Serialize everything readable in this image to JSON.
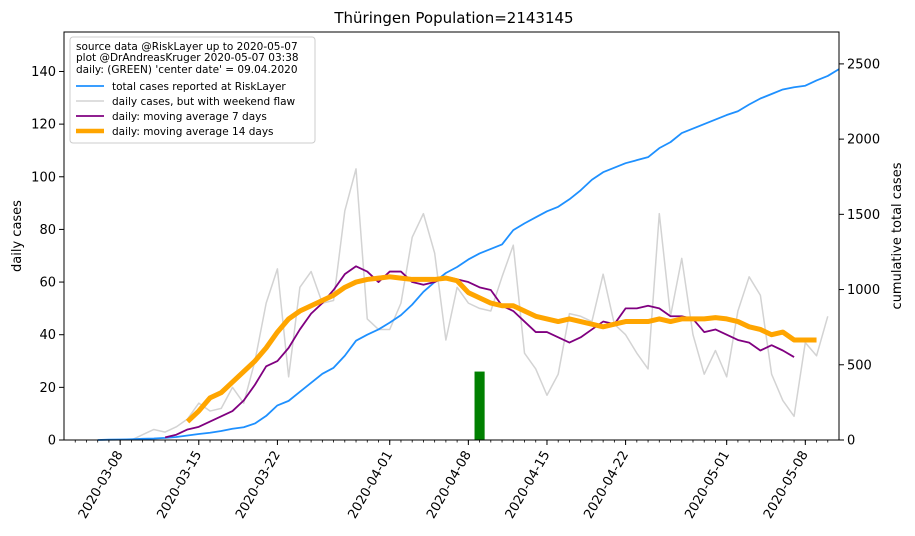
{
  "chart_data": {
    "type": "line",
    "title": "Thüringen Population=2143145",
    "ylabel_left": "daily cases",
    "ylabel_right": "cumulative total cases",
    "ylabel_left_color": "#800080",
    "ylabel_right_color": "#1e90ff",
    "ylim_left": [
      0,
      155
    ],
    "ylim_right": [
      0,
      2712
    ],
    "yticks_left": [
      0,
      20,
      40,
      60,
      80,
      100,
      120,
      140
    ],
    "yticks_right": [
      0,
      500,
      1000,
      1500,
      2000,
      2500
    ],
    "xlim": [
      "2020-03-03",
      "2020-05-11"
    ],
    "xticks": [
      "2020-03-08",
      "2020-03-15",
      "2020-03-22",
      "2020-04-01",
      "2020-04-08",
      "2020-04-15",
      "2020-04-22",
      "2020-05-01",
      "2020-05-08"
    ],
    "center_date": "2020-04-09",
    "center_bar_height": 26,
    "legend": {
      "placement": "top-left",
      "header": [
        "source data @RiskLayer up to 2020-05-07",
        "plot @DrAndreasKruger 2020-05-07 03:38",
        "daily: (GREEN) 'center date' = 09.04.2020"
      ]
    },
    "series": [
      {
        "name": "total cases reported at RiskLayer",
        "axis": "right",
        "color": "#1e90ff",
        "width": 1.8,
        "start": "2020-03-06",
        "values": [
          0,
          2,
          3,
          5,
          8,
          10,
          14,
          20,
          30,
          40,
          48,
          60,
          75,
          85,
          110,
          160,
          230,
          260,
          320,
          380,
          440,
          480,
          560,
          660,
          700,
          735,
          780,
          830,
          900,
          985,
          1050,
          1110,
          1150,
          1200,
          1240,
          1270,
          1300,
          1395,
          1440,
          1480,
          1520,
          1550,
          1600,
          1660,
          1730,
          1780,
          1810,
          1840,
          1860,
          1880,
          1940,
          1980,
          2040,
          2070,
          2100,
          2130,
          2160,
          2185,
          2230,
          2270,
          2300,
          2330,
          2345,
          2355,
          2390,
          2420,
          2465
        ]
      },
      {
        "name": "daily cases, but with weekend flaw",
        "axis": "left",
        "color": "#d3d3d3",
        "width": 1.5,
        "start": "2020-03-09",
        "values": [
          0,
          2,
          4,
          3,
          5,
          8,
          14,
          11,
          12,
          20,
          14,
          30,
          52,
          65,
          24,
          58,
          64,
          52,
          53,
          87,
          103,
          46,
          42,
          42,
          52,
          77,
          86,
          71,
          38,
          58,
          52,
          50,
          49,
          62,
          74,
          33,
          27,
          17,
          25,
          48,
          47,
          45,
          63,
          44,
          40,
          33,
          27,
          86,
          47,
          69,
          40,
          25,
          34,
          24,
          49,
          62,
          55,
          25,
          15,
          9,
          37,
          32,
          47
        ]
      },
      {
        "name": "daily: moving average 7 days",
        "axis": "left",
        "color": "#800080",
        "width": 1.8,
        "start": "2020-03-12",
        "values": [
          1,
          2,
          4,
          5,
          7,
          9,
          11,
          15,
          21,
          28,
          30,
          35,
          42,
          48,
          52,
          57,
          63,
          66,
          64,
          60,
          64,
          64,
          60,
          59,
          60,
          62,
          61,
          60,
          58,
          57,
          51,
          49,
          45,
          41,
          41,
          39,
          37,
          39,
          42,
          45,
          44,
          50,
          50,
          51,
          50,
          47,
          47,
          46,
          41,
          42,
          40,
          38,
          37,
          34,
          36,
          34,
          31.5
        ]
      },
      {
        "name": "daily: moving average 14 days",
        "axis": "left",
        "color": "#ffa500",
        "width": 5,
        "start": "2020-03-14",
        "values": [
          7,
          11,
          16,
          18,
          22,
          26,
          30,
          35,
          41,
          46,
          49,
          51,
          53,
          55,
          58,
          60,
          61,
          61.5,
          62,
          61.5,
          61,
          61,
          61,
          61.5,
          60.5,
          56,
          54,
          52,
          51,
          51,
          49,
          47,
          46,
          45,
          46,
          45,
          44,
          43,
          44,
          45,
          45,
          45,
          46,
          45,
          46,
          46,
          46,
          46.5,
          46,
          45,
          43,
          42,
          40,
          41,
          38,
          38,
          38
        ]
      }
    ]
  }
}
